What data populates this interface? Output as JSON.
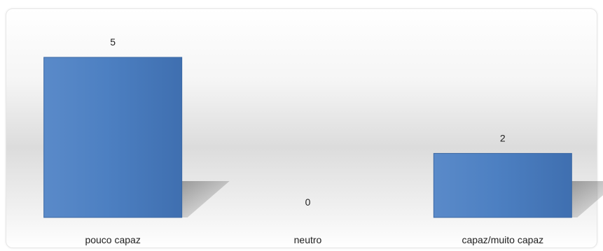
{
  "chart_data": {
    "type": "bar",
    "categories": [
      "pouco capaz",
      "neutro",
      "capaz/muito capaz"
    ],
    "values": [
      5,
      0,
      2
    ],
    "data_labels": [
      "5",
      "0",
      "2"
    ],
    "title": "",
    "xlabel": "",
    "ylabel": "",
    "ylim": [
      0,
      5
    ],
    "grid": false,
    "legend": "none",
    "bar_color": "#4a7dbf",
    "bar_edge_color": "#3a67a3"
  }
}
